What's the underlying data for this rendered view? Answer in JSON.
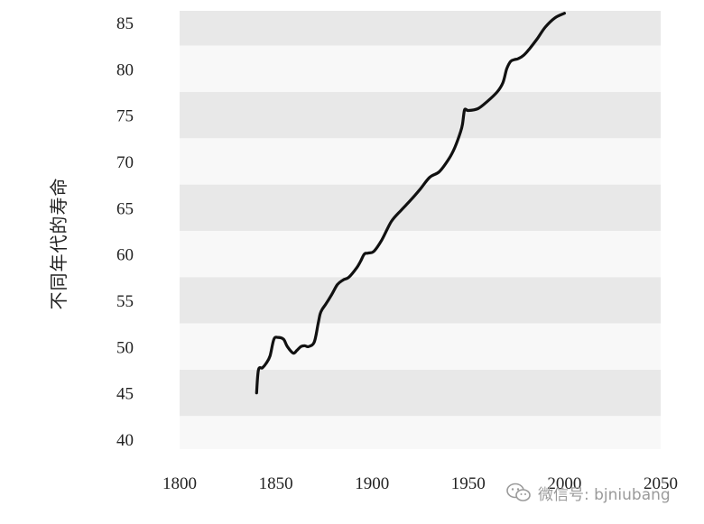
{
  "chart_data": {
    "type": "line",
    "title": "",
    "xlabel": "",
    "ylabel": "不同年代的寿命",
    "xlim": [
      1800,
      2050
    ],
    "ylim": [
      38,
      86
    ],
    "x_ticks": [
      1800,
      1850,
      1900,
      1950,
      2000,
      2050
    ],
    "y_ticks": [
      40,
      45,
      50,
      55,
      60,
      65,
      70,
      75,
      80,
      85
    ],
    "grid": "alternating horizontal bands",
    "legend": "none",
    "colors": {
      "line": "#111111",
      "band_dark": "#e8e8e8",
      "band_light": "#f8f8f8"
    },
    "series": [
      {
        "x": [
          1840,
          1841,
          1843,
          1845,
          1847,
          1849,
          1851,
          1854,
          1856,
          1859,
          1861,
          1863,
          1865,
          1867,
          1870,
          1872,
          1873,
          1874,
          1876,
          1879,
          1882,
          1885,
          1888,
          1892,
          1894,
          1896,
          1898,
          1901,
          1905,
          1910,
          1915,
          1920,
          1925,
          1930,
          1935,
          1940,
          1943,
          1946,
          1947,
          1948,
          1949,
          1950,
          1955,
          1960,
          1965,
          1968,
          1970,
          1972,
          1974,
          1976,
          1979,
          1982,
          1986,
          1990,
          1995,
          2000
        ],
        "y": [
          45,
          47.5,
          47.7,
          48.2,
          49,
          50.8,
          51,
          50.8,
          50,
          49.3,
          49.6,
          50,
          50.1,
          50,
          50.5,
          52.5,
          53.5,
          54,
          54.6,
          55.6,
          56.7,
          57.2,
          57.5,
          58.5,
          59.2,
          60,
          60.1,
          60.3,
          61.5,
          63.5,
          64.7,
          65.8,
          67,
          68.3,
          68.9,
          70.3,
          71.5,
          73.2,
          74,
          75.5,
          75.6,
          75.5,
          75.7,
          76.5,
          77.5,
          78.5,
          80,
          80.8,
          81,
          81.1,
          81.5,
          82.2,
          83.3,
          84.5,
          85.5,
          86
        ]
      }
    ]
  },
  "watermark": {
    "text": "微信号: bjniubang",
    "icon": "wechat-icon"
  }
}
